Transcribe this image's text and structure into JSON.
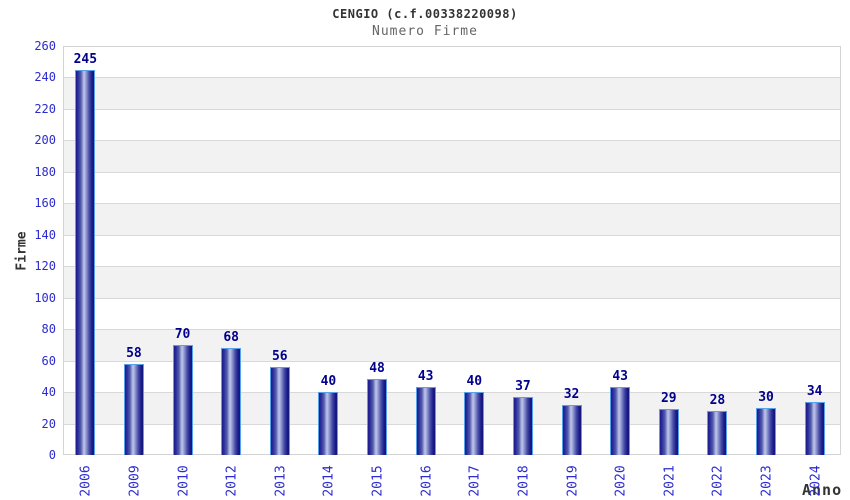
{
  "chart_data": {
    "type": "bar",
    "title": "CENGIO (c.f.00338220098)",
    "subtitle": "Numero Firme",
    "xlabel": "Anno",
    "ylabel": "Firme",
    "categories": [
      "2006",
      "2009",
      "2010",
      "2012",
      "2013",
      "2014",
      "2015",
      "2016",
      "2017",
      "2018",
      "2019",
      "2020",
      "2021",
      "2022",
      "2023",
      "2024"
    ],
    "values": [
      245,
      58,
      70,
      68,
      56,
      40,
      48,
      43,
      40,
      37,
      32,
      43,
      29,
      28,
      30,
      34
    ],
    "ylim": [
      0,
      260
    ],
    "ytick_step": 20,
    "grid": true,
    "legend_position": "none",
    "band_pattern": "alternating horizontal white/gray bands",
    "colors": {
      "background": "#ffffff",
      "plot_border": "#d4d4d4",
      "band_gray": "#f2f2f2",
      "gridline": "#d9d9d9",
      "tick_label_blue": "#2b2bd0",
      "value_label_navy": "#00008b",
      "title_color": "#333333",
      "subtitle_color": "#666666",
      "axis_label_color": "#333333",
      "bar_border_lightblue": "#58a0e8",
      "bar_dark_navy": "#1b1b88",
      "bar_highlight": "#bcc2e8"
    }
  }
}
